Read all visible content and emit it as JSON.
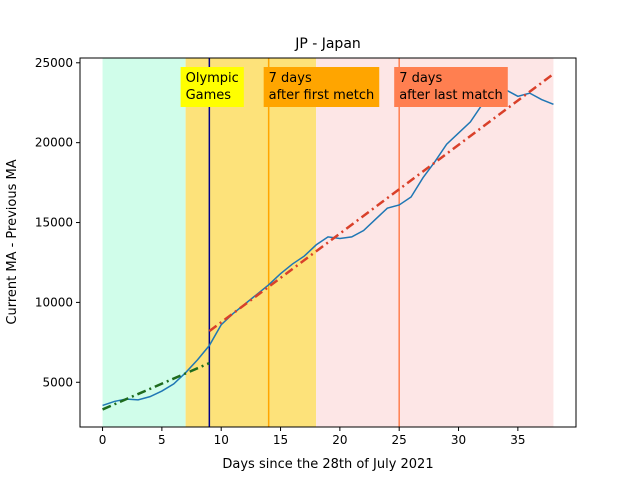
{
  "chart_data": {
    "type": "line",
    "title": "JP - Japan",
    "x_label": "Days since the 28th of July 2021",
    "y_label": "Current MA - Previous MA",
    "xlim": [
      -1.9,
      39.9
    ],
    "ylim": [
      2200,
      25300
    ],
    "xticks": [
      0,
      5,
      10,
      15,
      20,
      25,
      30,
      35
    ],
    "yticks": [
      5000,
      10000,
      15000,
      20000,
      25000
    ],
    "spans": [
      {
        "start": 0,
        "end": 7,
        "color": "#d0fdea"
      },
      {
        "start": 7,
        "end": 18,
        "color": "#fde27a"
      },
      {
        "start": 18,
        "end": 38,
        "color": "#fde6e6"
      }
    ],
    "vlines": [
      {
        "x": 9,
        "color": "#00008b"
      },
      {
        "x": 14,
        "color": "#ffa500"
      },
      {
        "x": 25,
        "color": "#ff7f50"
      }
    ],
    "annotations": [
      {
        "x": 7,
        "lines": [
          "Olympic",
          "Games"
        ],
        "color": "#ffff00"
      },
      {
        "x": 14,
        "lines": [
          "7 days",
          "after first metch"
        ],
        "color": "#ffa500"
      },
      {
        "x": 25,
        "lines": [
          "7 days",
          "after last match"
        ],
        "color": "#ff7f50"
      }
    ],
    "series": [
      {
        "color": "#1f77b4",
        "style": "solid",
        "x": [
          0,
          1,
          2,
          3,
          4,
          5,
          6,
          7,
          8,
          9,
          10,
          11,
          12,
          13,
          14,
          15,
          16,
          17,
          18,
          19,
          20,
          21,
          22,
          23,
          24,
          25,
          26,
          27,
          28,
          29,
          30,
          31,
          32,
          33,
          34,
          35,
          36,
          37,
          38
        ],
        "values": [
          3550,
          3800,
          3950,
          3900,
          4100,
          4450,
          4900,
          5600,
          6400,
          7300,
          8600,
          9300,
          9900,
          10500,
          11100,
          11800,
          12400,
          12900,
          13600,
          14100,
          14000,
          14100,
          14500,
          15200,
          15900,
          16100,
          16600,
          17800,
          18800,
          19900,
          20600,
          21300,
          22400,
          23100,
          23300,
          22900,
          23100,
          22700,
          22400
        ]
      },
      {
        "color": "#1e6b1e",
        "style": "dashdot",
        "x": [
          0,
          9
        ],
        "values": [
          3300,
          6200
        ]
      },
      {
        "color": "#d9402a",
        "style": "dashdot",
        "x": [
          9,
          38
        ],
        "values": [
          8200,
          24300
        ]
      }
    ]
  }
}
